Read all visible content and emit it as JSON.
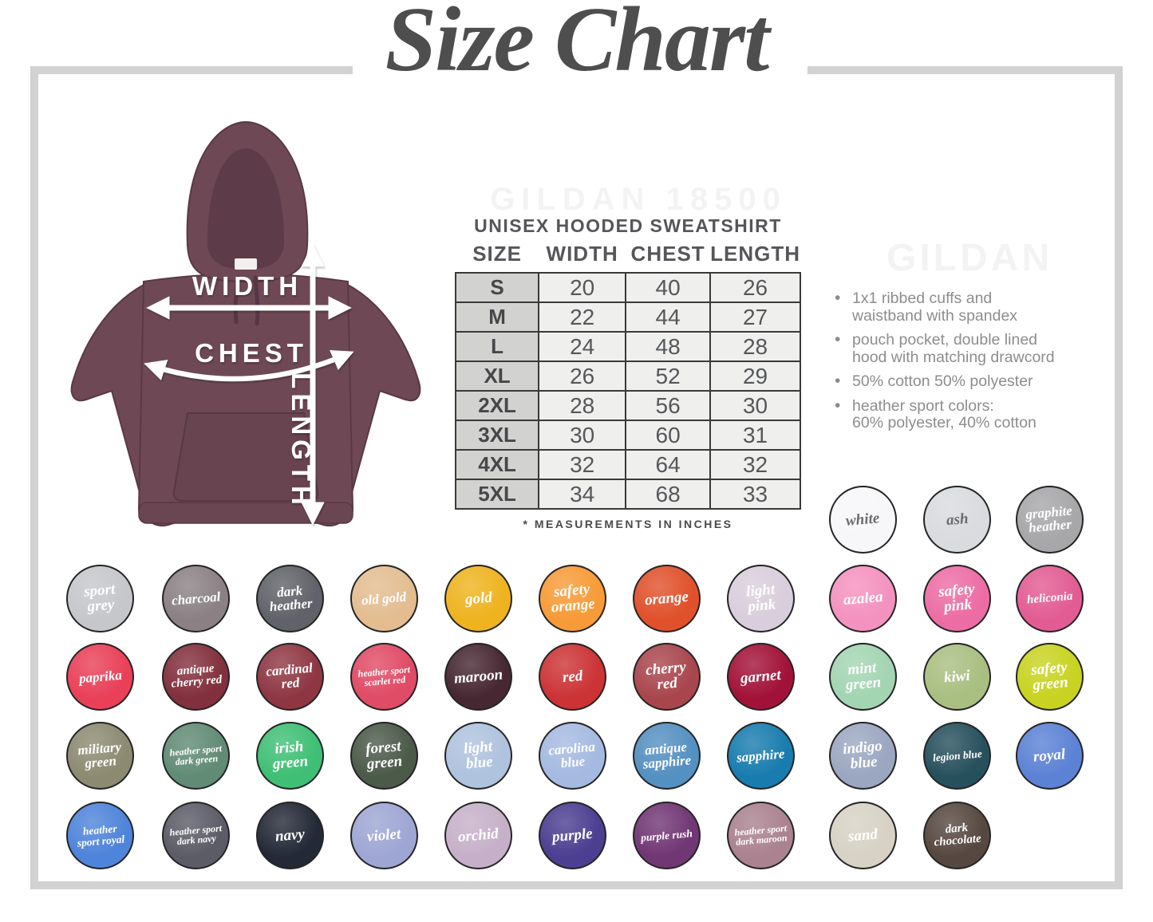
{
  "title": "Size Chart",
  "watermarks": {
    "model": "GILDAN 18500",
    "brand": "GILDAN"
  },
  "diagram": {
    "width_label": "WIDTH",
    "chest_label": "CHEST",
    "length_label": "LENGTH",
    "hoodie_color": "#6e4955"
  },
  "table": {
    "title": "UNISEX HOODED SWEATSHIRT",
    "columns": [
      "SIZE",
      "WIDTH",
      "CHEST",
      "LENGTH"
    ],
    "rows": [
      [
        "S",
        "20",
        "40",
        "26"
      ],
      [
        "M",
        "22",
        "44",
        "27"
      ],
      [
        "L",
        "24",
        "48",
        "28"
      ],
      [
        "XL",
        "26",
        "52",
        "29"
      ],
      [
        "2XL",
        "28",
        "56",
        "30"
      ],
      [
        "3XL",
        "30",
        "60",
        "31"
      ],
      [
        "4XL",
        "32",
        "64",
        "32"
      ],
      [
        "5XL",
        "34",
        "68",
        "33"
      ]
    ],
    "footnote": "* MEASUREMENTS IN INCHES"
  },
  "features": [
    "1x1 ribbed cuffs and\nwaistband with spandex",
    "pouch pocket, double lined\nhood with matching drawcord",
    "50% cotton 50% polyester",
    "heather sport colors:\n60% polyester, 40% cotton"
  ],
  "swatches": {
    "top": [
      {
        "name": "white",
        "lines": [
          "white"
        ],
        "color": "#f7f7f9",
        "dark_text": true
      },
      {
        "name": "ash",
        "lines": [
          "ash"
        ],
        "color": "#d9dbde",
        "dark_text": true
      },
      {
        "name": "graphite heather",
        "lines": [
          "graphite",
          "heather"
        ],
        "color": "#a7a7aa",
        "dark_text": false
      }
    ],
    "grid": [
      [
        {
          "name": "sport grey",
          "lines": [
            "sport",
            "grey"
          ],
          "color": "#c5c7cb"
        },
        {
          "name": "charcoal",
          "lines": [
            "charcoal"
          ],
          "color": "#8b8185"
        },
        {
          "name": "dark heather",
          "lines": [
            "dark",
            "heather"
          ],
          "color": "#5f6268"
        },
        {
          "name": "old gold",
          "lines": [
            "old gold"
          ],
          "color": "#e3bd90"
        },
        {
          "name": "gold",
          "lines": [
            "gold"
          ],
          "color": "#eeb31f"
        },
        {
          "name": "safety orange",
          "lines": [
            "safety",
            "orange"
          ],
          "color": "#f79b38"
        },
        {
          "name": "orange",
          "lines": [
            "orange"
          ],
          "color": "#e0512b"
        },
        {
          "name": "light pink",
          "lines": [
            "light",
            "pink"
          ],
          "color": "#d9cedc"
        },
        {
          "name": "azalea",
          "lines": [
            "azalea"
          ],
          "color": "#f492bf"
        },
        {
          "name": "safety pink",
          "lines": [
            "safety",
            "pink"
          ],
          "color": "#ec6da4"
        },
        {
          "name": "heliconia",
          "lines": [
            "heliconia"
          ],
          "color": "#e25c93"
        }
      ],
      [
        {
          "name": "paprika",
          "lines": [
            "paprika"
          ],
          "color": "#e94058"
        },
        {
          "name": "antique cherry red",
          "lines": [
            "antique",
            "cherry red"
          ],
          "color": "#82303d"
        },
        {
          "name": "cardinal red",
          "lines": [
            "cardinal",
            "red"
          ],
          "color": "#8e3743"
        },
        {
          "name": "heather sport scarlet red",
          "lines": [
            "heather sport",
            "scarlet red"
          ],
          "color": "#e04b66"
        },
        {
          "name": "maroon",
          "lines": [
            "maroon"
          ],
          "color": "#462732"
        },
        {
          "name": "red",
          "lines": [
            "red"
          ],
          "color": "#cc3335"
        },
        {
          "name": "cherry red",
          "lines": [
            "cherry",
            "red"
          ],
          "color": "#a9464d"
        },
        {
          "name": "garnet",
          "lines": [
            "garnet"
          ],
          "color": "#a21238"
        },
        {
          "name": "mint green",
          "lines": [
            "mint",
            "green"
          ],
          "color": "#a3d5b2"
        },
        {
          "name": "kiwi",
          "lines": [
            "kiwi"
          ],
          "color": "#a9bf81"
        },
        {
          "name": "safety green",
          "lines": [
            "safety",
            "green"
          ],
          "color": "#c8d321"
        }
      ],
      [
        {
          "name": "military green",
          "lines": [
            "military",
            "green"
          ],
          "color": "#8d8a72"
        },
        {
          "name": "heather sport dark green",
          "lines": [
            "heather sport",
            "dark green"
          ],
          "color": "#618b75"
        },
        {
          "name": "irish green",
          "lines": [
            "irish",
            "green"
          ],
          "color": "#3fbf75"
        },
        {
          "name": "forest green",
          "lines": [
            "forest",
            "green"
          ],
          "color": "#4b5a49"
        },
        {
          "name": "light blue",
          "lines": [
            "light",
            "blue"
          ],
          "color": "#afc2de"
        },
        {
          "name": "carolina blue",
          "lines": [
            "carolina",
            "blue"
          ],
          "color": "#a5bae1"
        },
        {
          "name": "antique sapphire",
          "lines": [
            "antique",
            "sapphire"
          ],
          "color": "#5490c1"
        },
        {
          "name": "sapphire",
          "lines": [
            "sapphire"
          ],
          "color": "#187cae"
        },
        {
          "name": "indigo blue",
          "lines": [
            "indigo",
            "blue"
          ],
          "color": "#9ba7c1"
        },
        {
          "name": "legion blue",
          "lines": [
            "legion blue"
          ],
          "color": "#27505d"
        },
        {
          "name": "royal",
          "lines": [
            "royal"
          ],
          "color": "#5c82d5"
        }
      ],
      [
        {
          "name": "heather sport royal",
          "lines": [
            "heather",
            "sport royal"
          ],
          "color": "#4e84da"
        },
        {
          "name": "heather sport dark navy",
          "lines": [
            "heather sport",
            "dark navy"
          ],
          "color": "#5c5c67"
        },
        {
          "name": "navy",
          "lines": [
            "navy"
          ],
          "color": "#232936"
        },
        {
          "name": "violet",
          "lines": [
            "violet"
          ],
          "color": "#9ea6d4"
        },
        {
          "name": "orchid",
          "lines": [
            "orchid"
          ],
          "color": "#c6b0c9"
        },
        {
          "name": "purple",
          "lines": [
            "purple"
          ],
          "color": "#4c3e91"
        },
        {
          "name": "purple rush",
          "lines": [
            "purple rush"
          ],
          "color": "#713674"
        },
        {
          "name": "heather sport dark maroon",
          "lines": [
            "heather sport",
            "dark maroon"
          ],
          "color": "#aa8290"
        },
        {
          "name": "sand",
          "lines": [
            "sand"
          ],
          "color": "#d7d2c5"
        },
        {
          "name": "dark chocolate",
          "lines": [
            "dark",
            "chocolate"
          ],
          "color": "#564840"
        }
      ]
    ]
  }
}
